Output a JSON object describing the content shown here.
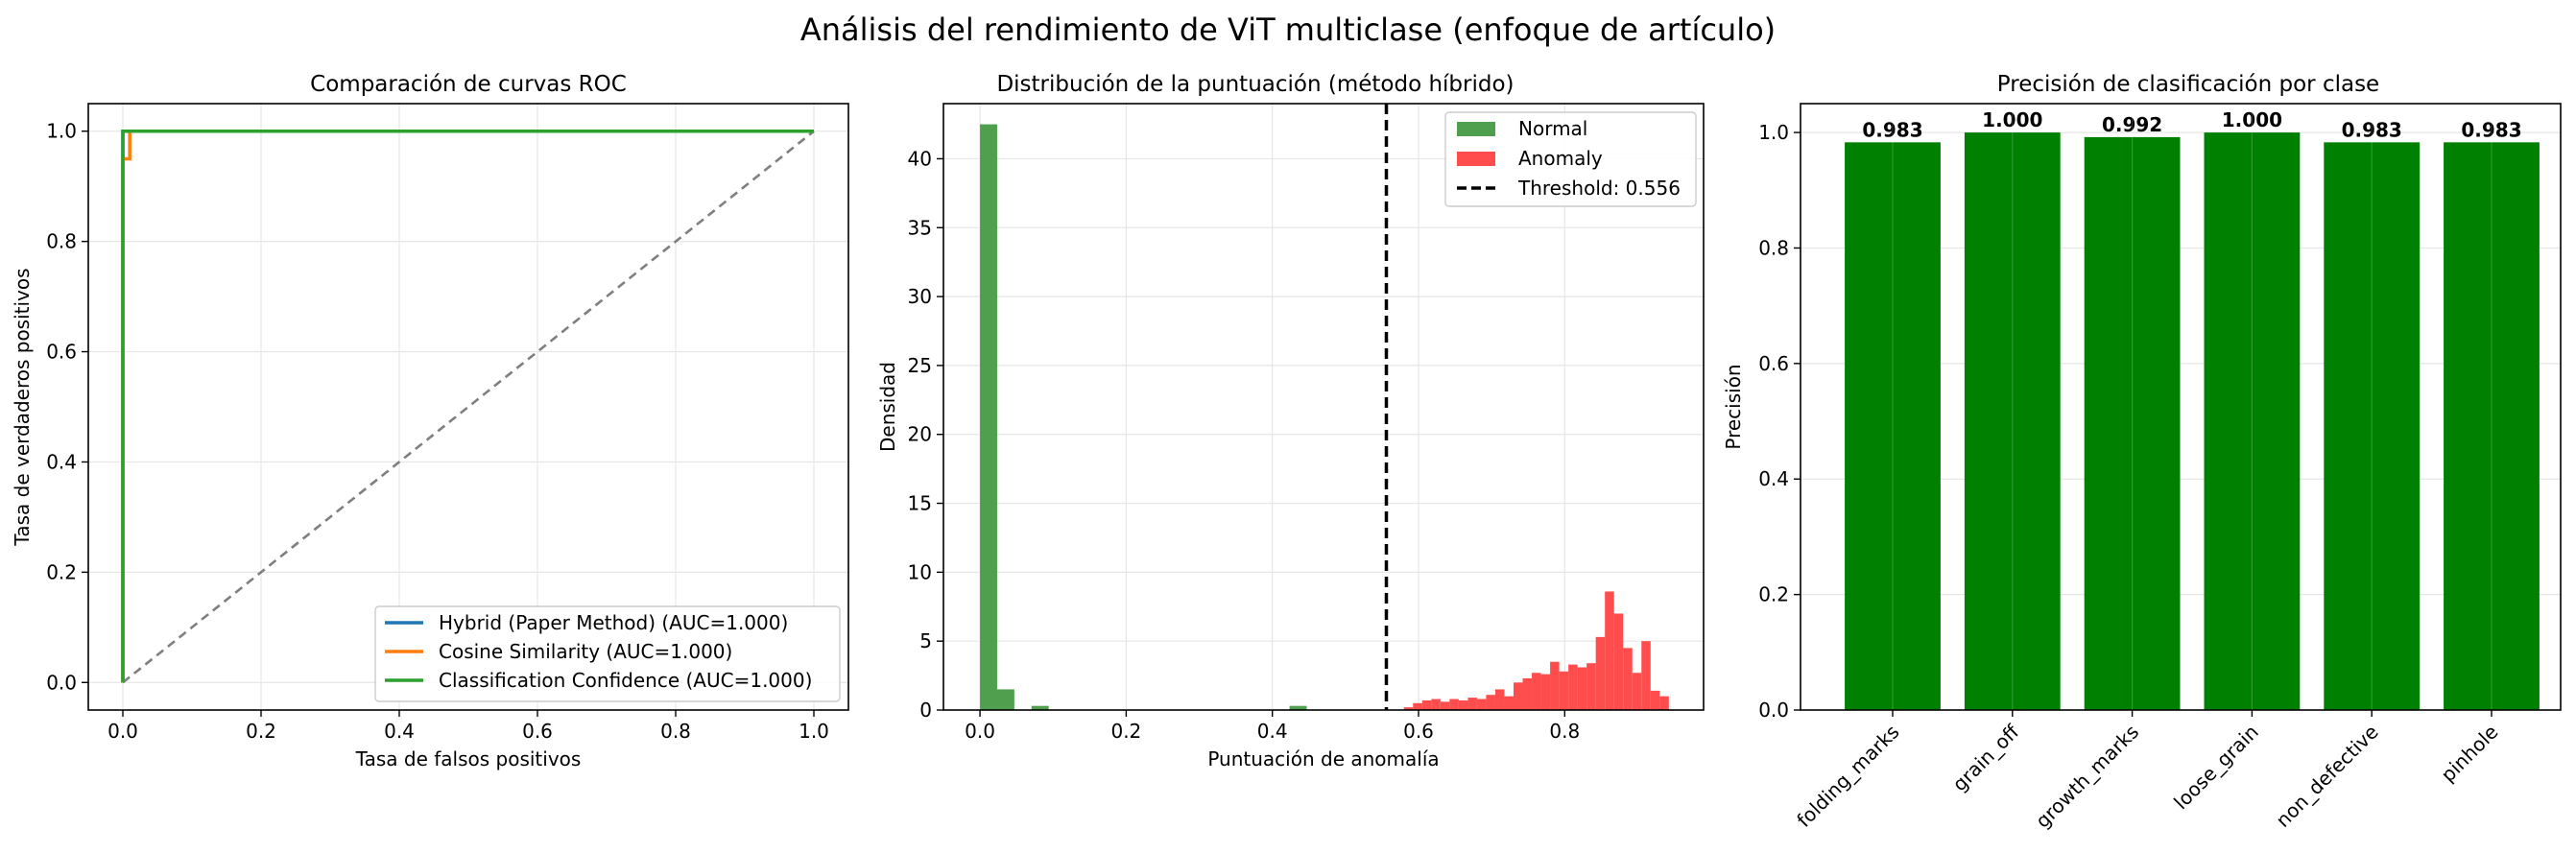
{
  "figure_title": "Análisis del rendimiento de ViT multiclase (enfoque de artículo)",
  "colors": {
    "blue": "#1f77b4",
    "orange": "#ff7f0e",
    "green": "#2ca02c",
    "diag": "#7f7f7f",
    "hist_normal": "#4f9f4f",
    "hist_anomaly": "#ff4d4d",
    "bar": "#008000"
  },
  "chart_data": [
    {
      "type": "line",
      "title": "Comparación de curvas ROC",
      "xlabel": "Tasa de falsos positivos",
      "ylabel": "Tasa de verdaderos positivos",
      "xlim": [
        -0.05,
        1.05
      ],
      "ylim": [
        -0.05,
        1.05
      ],
      "xticks": [
        0.0,
        0.2,
        0.4,
        0.6,
        0.8,
        1.0
      ],
      "yticks": [
        0.0,
        0.2,
        0.4,
        0.6,
        0.8,
        1.0
      ],
      "tick_labels": [
        "0.0",
        "0.2",
        "0.4",
        "0.6",
        "0.8",
        "1.0"
      ],
      "grid": true,
      "legend_position": "lower-right",
      "series": [
        {
          "name": "Hybrid (Paper Method) (AUC=1.000)",
          "color_key": "blue",
          "x": [
            0.0,
            0.0,
            0.01,
            1.0
          ],
          "y": [
            0.0,
            1.0,
            1.0,
            1.0
          ]
        },
        {
          "name": "Cosine Similarity (AUC=1.000)",
          "color_key": "orange",
          "x": [
            0.0,
            0.0,
            0.01,
            0.01,
            1.0
          ],
          "y": [
            0.0,
            0.95,
            0.95,
            1.0,
            1.0
          ]
        },
        {
          "name": "Classification Confidence (AUC=1.000)",
          "color_key": "green",
          "x": [
            0.0,
            0.0,
            0.01,
            1.0
          ],
          "y": [
            0.0,
            1.0,
            1.0,
            1.0
          ]
        }
      ],
      "reference_line": {
        "x": [
          0,
          1
        ],
        "y": [
          0,
          1
        ],
        "style": "dashed"
      }
    },
    {
      "type": "histogram",
      "title": "Distribución de la puntuación (método híbrido)",
      "xlabel": "Puntuación de anomalía",
      "ylabel": "Densidad",
      "xlim": [
        -0.05,
        0.99
      ],
      "ylim": [
        0,
        44
      ],
      "xticks": [
        0.0,
        0.2,
        0.4,
        0.6,
        0.8
      ],
      "xtick_labels": [
        "0.0",
        "0.2",
        "0.4",
        "0.6",
        "0.8"
      ],
      "yticks": [
        0,
        5,
        10,
        15,
        20,
        25,
        30,
        35,
        40
      ],
      "grid": true,
      "legend_position": "upper-right",
      "threshold": {
        "value": 0.556,
        "label": "Threshold: 0.556"
      },
      "series": [
        {
          "name": "Normal",
          "color_key": "hist_normal",
          "bin_edges": [
            0.0,
            0.0235,
            0.047,
            0.0705,
            0.094,
            0.4235,
            0.447
          ],
          "values": [
            42.5,
            1.5,
            0.0,
            0.3,
            0.0,
            0.3
          ]
        },
        {
          "name": "Anomaly",
          "color_key": "hist_anomaly",
          "bin_start": 0.58,
          "bin_width": 0.0125,
          "values": [
            0.2,
            0.5,
            0.7,
            0.8,
            0.6,
            0.8,
            0.7,
            0.9,
            0.8,
            1.1,
            1.5,
            1.0,
            2.0,
            2.3,
            2.7,
            2.6,
            3.5,
            2.8,
            3.3,
            3.1,
            3.4,
            5.3,
            8.6,
            7.0,
            4.5,
            2.7,
            5.0,
            1.4,
            1.0
          ]
        }
      ]
    },
    {
      "type": "bar",
      "title": "Precisión de clasificación por clase",
      "xlabel": "",
      "ylabel": "Precisión",
      "categories": [
        "folding_marks",
        "grain_off",
        "growth_marks",
        "loose_grain",
        "non_defective",
        "pinhole"
      ],
      "values": [
        0.983,
        1.0,
        0.992,
        1.0,
        0.983,
        0.983
      ],
      "value_labels": [
        "0.983",
        "1.000",
        "0.992",
        "1.000",
        "0.983",
        "0.983"
      ],
      "ylim": [
        0,
        1.05
      ],
      "yticks": [
        0.0,
        0.2,
        0.4,
        0.6,
        0.8,
        1.0
      ],
      "ytick_labels": [
        "0.0",
        "0.2",
        "0.4",
        "0.6",
        "0.8",
        "1.0"
      ],
      "grid": true
    }
  ]
}
